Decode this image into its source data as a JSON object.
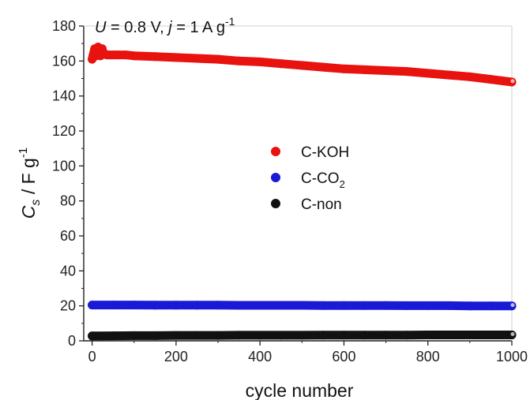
{
  "chart_data": {
    "type": "scatter",
    "xlabel": "cycle number",
    "ylabel": {
      "base": "C",
      "sub": "s",
      "rest": " / F g",
      "sup": "-1"
    },
    "annotation": {
      "U_var": "U",
      "U_text": " = 0.8 V, ",
      "j_var": "j",
      "j_text": " = 1 A g",
      "sup": "-1"
    },
    "xlim": [
      -20,
      1000
    ],
    "ylim": [
      0,
      180
    ],
    "x_ticks": [
      0,
      200,
      400,
      600,
      800,
      1000
    ],
    "y_ticks": [
      0,
      20,
      40,
      60,
      80,
      100,
      120,
      140,
      160,
      180
    ],
    "grid": false,
    "legend_position": "center",
    "series": [
      {
        "name": "C-KOH",
        "name_base": "C-KOH",
        "name_sub": "",
        "color": "#e8120f",
        "x": [
          0,
          2,
          4,
          6,
          8,
          10,
          12,
          14,
          16,
          18,
          20,
          22,
          24,
          26,
          28,
          30,
          35,
          40,
          50,
          60,
          80,
          100,
          150,
          200,
          250,
          300,
          350,
          400,
          450,
          500,
          550,
          600,
          650,
          700,
          750,
          800,
          850,
          900,
          950,
          1000
        ],
        "y": [
          161,
          163,
          165,
          167,
          165,
          163,
          166,
          168,
          167,
          165,
          163,
          166,
          167,
          165,
          164,
          164,
          163.5,
          163.5,
          163.5,
          163.5,
          163.5,
          163,
          162.5,
          162,
          161.5,
          161,
          160,
          159.5,
          158.5,
          157.5,
          156.5,
          155.5,
          155,
          154.5,
          154,
          153,
          152,
          151,
          149.5,
          148
        ]
      },
      {
        "name": "C-CO2",
        "name_base": "C-CO",
        "name_sub": "2",
        "color": "#1a1ad6",
        "x": [
          0,
          50,
          100,
          150,
          200,
          250,
          300,
          350,
          400,
          450,
          500,
          550,
          600,
          650,
          700,
          750,
          800,
          850,
          900,
          950,
          1000
        ],
        "y": [
          20.5,
          20.5,
          20.5,
          20.4,
          20.4,
          20.4,
          20.4,
          20.3,
          20.3,
          20.3,
          20.3,
          20.2,
          20.2,
          20.2,
          20.2,
          20.1,
          20.1,
          20.1,
          20.0,
          20.0,
          20.0
        ]
      },
      {
        "name": "C-non",
        "name_base": "C-non",
        "name_sub": "",
        "color": "#111111",
        "x": [
          0,
          50,
          100,
          150,
          200,
          250,
          300,
          350,
          400,
          450,
          500,
          550,
          600,
          650,
          700,
          750,
          800,
          850,
          900,
          950,
          1000
        ],
        "y": [
          2.8,
          2.9,
          3.0,
          3.0,
          3.1,
          3.1,
          3.1,
          3.2,
          3.2,
          3.2,
          3.2,
          3.3,
          3.3,
          3.3,
          3.3,
          3.3,
          3.4,
          3.4,
          3.4,
          3.4,
          3.4
        ]
      }
    ]
  }
}
